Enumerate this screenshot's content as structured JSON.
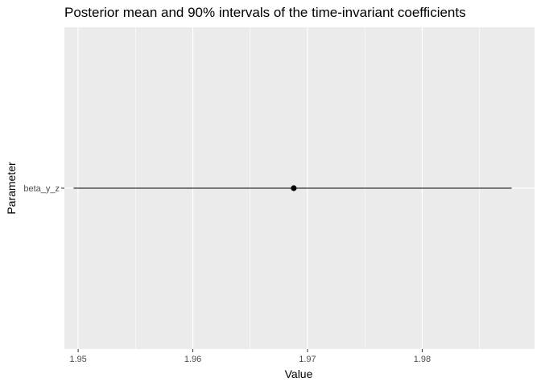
{
  "chart_data": {
    "type": "scatter",
    "title": "Posterior mean and 90% intervals of the time-invariant coefficients",
    "xlabel": "Value",
    "ylabel": "Parameter",
    "categories": [
      "beta_y_z"
    ],
    "xlim": [
      1.9488,
      1.9898
    ],
    "x_ticks": [
      1.95,
      1.96,
      1.97,
      1.98
    ],
    "x_tick_labels": [
      "1.95",
      "1.96",
      "1.97",
      "1.98"
    ],
    "grid": true,
    "series": [
      {
        "parameter": "beta_y_z",
        "mean": 1.9688,
        "lower": 1.9496,
        "upper": 1.9878
      }
    ],
    "colors": {
      "panel": "#ebebeb",
      "grid": "#ffffff",
      "mark": "#000000",
      "tick": "#333333"
    }
  }
}
